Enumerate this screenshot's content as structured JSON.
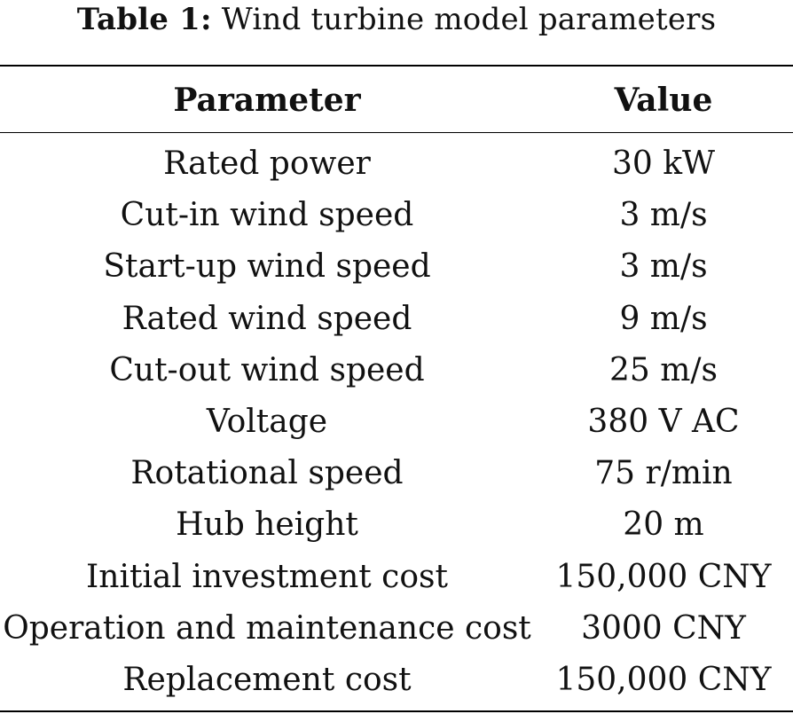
{
  "caption": {
    "label": "Table 1:",
    "title": "Wind turbine model parameters"
  },
  "table": {
    "headers": [
      "Parameter",
      "Value"
    ],
    "rows": [
      {
        "parameter": "Rated power",
        "value": "30 kW"
      },
      {
        "parameter": "Cut-in wind speed",
        "value": "3 m/s"
      },
      {
        "parameter": "Start-up wind speed",
        "value": "3 m/s"
      },
      {
        "parameter": "Rated wind speed",
        "value": "9 m/s"
      },
      {
        "parameter": "Cut-out wind speed",
        "value": "25 m/s"
      },
      {
        "parameter": "Voltage",
        "value": "380 V AC"
      },
      {
        "parameter": "Rotational speed",
        "value": "75 r/min"
      },
      {
        "parameter": "Hub height",
        "value": "20 m"
      },
      {
        "parameter": "Initial investment cost",
        "value": "150,000 CNY"
      },
      {
        "parameter": "Operation and maintenance cost",
        "value": "3000 CNY"
      },
      {
        "parameter": "Replacement cost",
        "value": "150,000 CNY"
      }
    ]
  }
}
